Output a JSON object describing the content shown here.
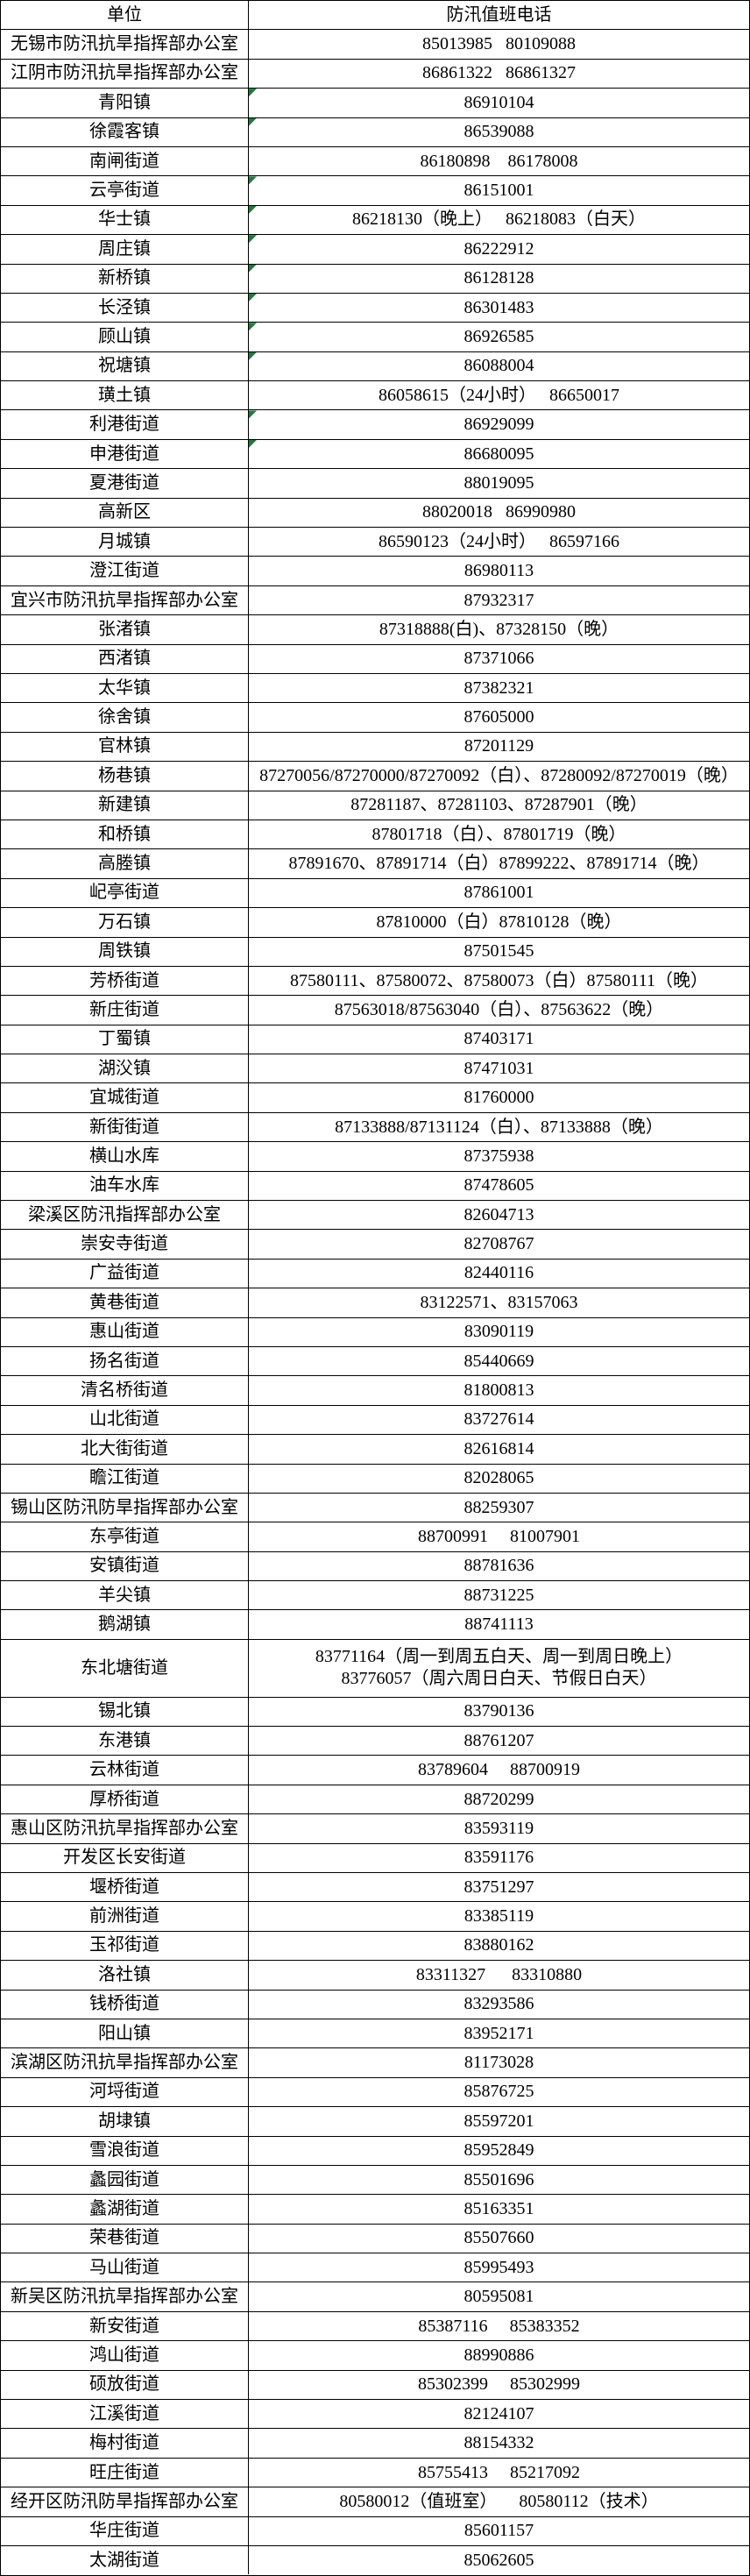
{
  "colors": {
    "border": "#000000",
    "flag_green": "#1e7b3c",
    "background": "#ffffff",
    "text": "#000000"
  },
  "table": {
    "header": {
      "unit": "单位",
      "phone": "防汛值班电话"
    },
    "rows": [
      {
        "unit": "无锡市防汛抗旱指挥部办公室",
        "phone": "85013985   80109088",
        "flag": false
      },
      {
        "unit": "江阴市防汛抗旱指挥部办公室",
        "phone": "86861322   86861327",
        "flag": false
      },
      {
        "unit": "青阳镇",
        "phone": "86910104",
        "flag": true
      },
      {
        "unit": "徐霞客镇",
        "phone": "86539088",
        "flag": true
      },
      {
        "unit": "南闸街道",
        "phone": "86180898    86178008",
        "flag": false
      },
      {
        "unit": "云亭街道",
        "phone": "86151001",
        "flag": true
      },
      {
        "unit": "华士镇",
        "phone": "86218130（晚上）   86218083（白天）",
        "flag": true
      },
      {
        "unit": "周庄镇",
        "phone": "86222912",
        "flag": true
      },
      {
        "unit": "新桥镇",
        "phone": "86128128",
        "flag": true
      },
      {
        "unit": "长泾镇",
        "phone": "86301483",
        "flag": true
      },
      {
        "unit": "顾山镇",
        "phone": "86926585",
        "flag": true
      },
      {
        "unit": "祝塘镇",
        "phone": "86088004",
        "flag": true
      },
      {
        "unit": "璜土镇",
        "phone": "86058615（24小时）   86650017",
        "flag": false
      },
      {
        "unit": "利港街道",
        "phone": "86929099",
        "flag": true
      },
      {
        "unit": "申港街道",
        "phone": "86680095",
        "flag": true
      },
      {
        "unit": "夏港街道",
        "phone": "88019095",
        "flag": false
      },
      {
        "unit": "高新区",
        "phone": "88020018   86990980",
        "flag": false
      },
      {
        "unit": "月城镇",
        "phone": "86590123（24小时）   86597166",
        "flag": false
      },
      {
        "unit": "澄江街道",
        "phone": "86980113",
        "flag": false
      },
      {
        "unit": "宜兴市防汛抗旱指挥部办公室",
        "phone": "87932317",
        "flag": false
      },
      {
        "unit": "张渚镇",
        "phone": "87318888(白)、87328150（晚）",
        "flag": false
      },
      {
        "unit": "西渚镇",
        "phone": "87371066",
        "flag": false
      },
      {
        "unit": "太华镇",
        "phone": "87382321",
        "flag": false
      },
      {
        "unit": "徐舍镇",
        "phone": "87605000",
        "flag": false
      },
      {
        "unit": "官林镇",
        "phone": "87201129",
        "flag": false
      },
      {
        "unit": "杨巷镇",
        "phone": "87270056/87270000/87270092（白）、87280092/87270019（晚）",
        "flag": false
      },
      {
        "unit": "新建镇",
        "phone": "87281187、87281103、87287901（晚）",
        "flag": false
      },
      {
        "unit": "和桥镇",
        "phone": "87801718（白）、87801719（晚）",
        "flag": false
      },
      {
        "unit": "高塍镇",
        "phone": "87891670、87891714（白）87899222、87891714（晚）",
        "flag": false
      },
      {
        "unit": "屺亭街道",
        "phone": "87861001",
        "flag": false
      },
      {
        "unit": "万石镇",
        "phone": "87810000（白）87810128（晚）",
        "flag": false
      },
      {
        "unit": "周铁镇",
        "phone": "87501545",
        "flag": false
      },
      {
        "unit": "芳桥街道",
        "phone": "87580111、87580072、87580073（白）87580111（晚）",
        "flag": false
      },
      {
        "unit": "新庄街道",
        "phone": "87563018/87563040（白）、87563622（晚）",
        "flag": false
      },
      {
        "unit": "丁蜀镇",
        "phone": "87403171",
        "flag": false
      },
      {
        "unit": "湖㳇镇",
        "phone": "87471031",
        "flag": false
      },
      {
        "unit": "宜城街道",
        "phone": "81760000",
        "flag": false
      },
      {
        "unit": "新街街道",
        "phone": "87133888/87131124（白）、87133888（晚）",
        "flag": false
      },
      {
        "unit": "横山水库",
        "phone": "87375938",
        "flag": false
      },
      {
        "unit": "油车水库",
        "phone": "87478605",
        "flag": false
      },
      {
        "unit": "梁溪区防汛指挥部办公室",
        "phone": "82604713",
        "flag": false
      },
      {
        "unit": "崇安寺街道",
        "phone": "82708767",
        "flag": false
      },
      {
        "unit": "广益街道",
        "phone": "82440116",
        "flag": false
      },
      {
        "unit": "黄巷街道",
        "phone": "83122571、83157063",
        "flag": false
      },
      {
        "unit": "惠山街道",
        "phone": "83090119",
        "flag": false
      },
      {
        "unit": "扬名街道",
        "phone": "85440669",
        "flag": false
      },
      {
        "unit": "清名桥街道",
        "phone": "81800813",
        "flag": false
      },
      {
        "unit": "山北街道",
        "phone": "83727614",
        "flag": false
      },
      {
        "unit": "北大街街道",
        "phone": "82616814",
        "flag": false
      },
      {
        "unit": "瞻江街道",
        "phone": "82028065",
        "flag": false
      },
      {
        "unit": "锡山区防汛防旱指挥部办公室",
        "phone": "88259307",
        "flag": false
      },
      {
        "unit": "东亭街道",
        "phone": "88700991     81007901",
        "flag": false
      },
      {
        "unit": "安镇街道",
        "phone": "88781636",
        "flag": false
      },
      {
        "unit": "羊尖镇",
        "phone": "88731225",
        "flag": false
      },
      {
        "unit": "鹅湖镇",
        "phone": "88741113",
        "flag": false
      },
      {
        "unit": "东北塘街道",
        "phone": "83771164（周一到周五白天、周一到周日晚上）\n83776057（周六周日白天、节假日白天）",
        "flag": false,
        "double": true
      },
      {
        "unit": "锡北镇",
        "phone": "83790136",
        "flag": false
      },
      {
        "unit": "东港镇",
        "phone": "88761207",
        "flag": false
      },
      {
        "unit": "云林街道",
        "phone": "83789604     88700919",
        "flag": false
      },
      {
        "unit": "厚桥街道",
        "phone": "88720299",
        "flag": false
      },
      {
        "unit": "惠山区防汛抗旱指挥部办公室",
        "phone": "83593119",
        "flag": false
      },
      {
        "unit": "开发区长安街道",
        "phone": "83591176",
        "flag": false
      },
      {
        "unit": "堰桥街道",
        "phone": "83751297",
        "flag": false
      },
      {
        "unit": "前洲街道",
        "phone": "83385119",
        "flag": false
      },
      {
        "unit": "玉祁街道",
        "phone": "83880162",
        "flag": false
      },
      {
        "unit": "洛社镇",
        "phone": "83311327      83310880",
        "flag": false
      },
      {
        "unit": "钱桥街道",
        "phone": "83293586",
        "flag": false
      },
      {
        "unit": "阳山镇",
        "phone": "83952171",
        "flag": false
      },
      {
        "unit": "滨湖区防汛抗旱指挥部办公室",
        "phone": "81173028",
        "flag": false
      },
      {
        "unit": "河埒街道",
        "phone": "85876725",
        "flag": false
      },
      {
        "unit": "胡埭镇",
        "phone": "85597201",
        "flag": false
      },
      {
        "unit": "雪浪街道",
        "phone": "85952849",
        "flag": false
      },
      {
        "unit": "蠡园街道",
        "phone": "85501696",
        "flag": false
      },
      {
        "unit": "蠡湖街道",
        "phone": "85163351",
        "flag": false
      },
      {
        "unit": "荣巷街道",
        "phone": "85507660",
        "flag": false
      },
      {
        "unit": "马山街道",
        "phone": "85995493",
        "flag": false
      },
      {
        "unit": "新吴区防汛抗旱指挥部办公室",
        "phone": "80595081",
        "flag": false
      },
      {
        "unit": "新安街道",
        "phone": "85387116     85383352",
        "flag": false
      },
      {
        "unit": "鸿山街道",
        "phone": "88990886",
        "flag": false
      },
      {
        "unit": "硕放街道",
        "phone": "85302399     85302999",
        "flag": false
      },
      {
        "unit": "江溪街道",
        "phone": "82124107",
        "flag": false
      },
      {
        "unit": "梅村街道",
        "phone": "88154332",
        "flag": false
      },
      {
        "unit": "旺庄街道",
        "phone": "85755413     85217092",
        "flag": false
      },
      {
        "unit": "经开区防汛防旱指挥部办公室",
        "phone": "80580012（值班室）     80580112（技术）",
        "flag": false
      },
      {
        "unit": "华庄街道",
        "phone": "85601157",
        "flag": false
      },
      {
        "unit": "太湖街道",
        "phone": "85062605",
        "flag": false
      }
    ]
  }
}
